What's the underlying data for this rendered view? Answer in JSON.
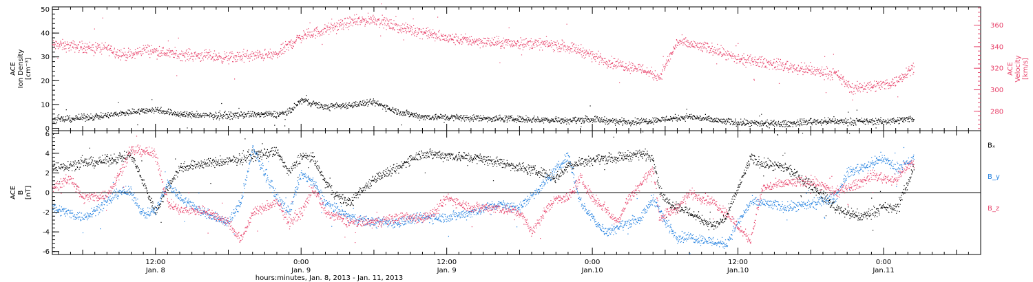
{
  "chart_data": {
    "type": "scatter",
    "xlabel": "hours:minutes, Jan.  8, 2013 - Jan. 11, 2013",
    "x_unit": "hours since 2013-01-08 00:00",
    "x_range": [
      3.5,
      80
    ],
    "x_ticks": [
      {
        "hour": 12,
        "time": "12:00",
        "date": "Jan. 8"
      },
      {
        "hour": 24,
        "time": "0:00",
        "date": "Jan. 9"
      },
      {
        "hour": 36,
        "time": "12:00",
        "date": "Jan. 9"
      },
      {
        "hour": 48,
        "time": "0:00",
        "date": "Jan.10"
      },
      {
        "hour": 60,
        "time": "12:00",
        "date": "Jan.10"
      },
      {
        "hour": 72,
        "time": "0:00",
        "date": "Jan.11"
      }
    ],
    "panels": [
      {
        "id": "plasma",
        "left_axis": {
          "title_lines": [
            "ACE",
            "Ion Density",
            "[cm⁻³]"
          ],
          "range": [
            -1,
            51
          ],
          "ticks": [
            "0",
            "10",
            "20",
            "30",
            "40",
            "50"
          ],
          "color": "#000000"
        },
        "right_axis": {
          "title_lines": [
            "ACE",
            "Velocity",
            "[km/s]"
          ],
          "range": [
            262,
            377
          ],
          "ticks": [
            "280",
            "300",
            "320",
            "340",
            "360"
          ],
          "color": "#e8436b"
        },
        "series": [
          {
            "axis": "right",
            "color": "#e8436b",
            "anchors": [
              [
                3.5,
                342
              ],
              [
                6,
                340
              ],
              [
                8,
                339
              ],
              [
                9,
                334
              ],
              [
                10,
                332
              ],
              [
                11,
                338
              ],
              [
                12,
                336
              ],
              [
                14,
                333
              ],
              [
                16,
                332
              ],
              [
                18,
                330
              ],
              [
                20,
                332
              ],
              [
                22,
                333
              ],
              [
                22.5,
                338
              ],
              [
                24,
                350
              ],
              [
                26,
                356
              ],
              [
                28,
                363
              ],
              [
                30,
                366
              ],
              [
                32,
                358
              ],
              [
                33,
                356
              ],
              [
                34,
                354
              ],
              [
                36,
                348
              ],
              [
                38,
                346
              ],
              [
                40,
                344
              ],
              [
                44,
                343
              ],
              [
                46,
                340
              ],
              [
                47,
                337
              ],
              [
                48,
                332
              ],
              [
                50,
                324
              ],
              [
                52,
                320
              ],
              [
                53.5,
                312
              ],
              [
                55,
                345
              ],
              [
                57,
                340
              ],
              [
                58,
                338
              ],
              [
                60,
                328
              ],
              [
                62,
                326
              ],
              [
                64,
                322
              ],
              [
                66,
                318
              ],
              [
                68,
                315
              ],
              [
                69.5,
                300
              ],
              [
                70,
                303
              ],
              [
                72,
                305
              ],
              [
                73,
                308
              ],
              [
                74,
                318
              ],
              [
                74.5,
                322
              ]
            ]
          },
          {
            "axis": "left",
            "color": "#000000",
            "anchors": [
              [
                3.5,
                3.5
              ],
              [
                8,
                5.5
              ],
              [
                10,
                7
              ],
              [
                12,
                8
              ],
              [
                14,
                6
              ],
              [
                16,
                5.5
              ],
              [
                18,
                5.5
              ],
              [
                20,
                6
              ],
              [
                22,
                6
              ],
              [
                23,
                7
              ],
              [
                24,
                12
              ],
              [
                26,
                9
              ],
              [
                28,
                10
              ],
              [
                30,
                11
              ],
              [
                32,
                7
              ],
              [
                34,
                5
              ],
              [
                38,
                4.5
              ],
              [
                42,
                4
              ],
              [
                46,
                3.5
              ],
              [
                48,
                4
              ],
              [
                50,
                3
              ],
              [
                52,
                3
              ],
              [
                54,
                4
              ],
              [
                56,
                5
              ],
              [
                58,
                3.5
              ],
              [
                60,
                2.5
              ],
              [
                62,
                2
              ],
              [
                64,
                2
              ],
              [
                66,
                3
              ],
              [
                68,
                3
              ],
              [
                70,
                3
              ],
              [
                72,
                3
              ],
              [
                74,
                4
              ],
              [
                74.5,
                4.5
              ]
            ]
          }
        ]
      },
      {
        "id": "magnetic",
        "left_axis": {
          "title_lines": [
            "ACE",
            "B",
            "[nT]"
          ],
          "range": [
            -6.3,
            6.3
          ],
          "ticks": [
            "-6",
            "-4",
            "-2",
            "0",
            "2",
            "4",
            "6"
          ],
          "color": "#000000"
        },
        "zero_line": true,
        "series": [
          {
            "name": "Bₓ",
            "color": "#000000",
            "anchors": [
              [
                3.5,
                2.6
              ],
              [
                6,
                3
              ],
              [
                8,
                3.3
              ],
              [
                9,
                3.6
              ],
              [
                10,
                3.8
              ],
              [
                11,
                1
              ],
              [
                12,
                -2
              ],
              [
                13,
                0.6
              ],
              [
                14,
                2.6
              ],
              [
                16,
                3
              ],
              [
                18,
                3.2
              ],
              [
                20,
                3.8
              ],
              [
                22,
                4.2
              ],
              [
                23,
                2
              ],
              [
                24,
                3.8
              ],
              [
                25,
                3.5
              ],
              [
                26,
                1
              ],
              [
                27,
                -0.4
              ],
              [
                28,
                -1
              ],
              [
                30,
                1.5
              ],
              [
                32,
                2.5
              ],
              [
                33,
                3.5
              ],
              [
                34,
                4
              ],
              [
                36,
                3.8
              ],
              [
                38,
                3.6
              ],
              [
                40,
                3.2
              ],
              [
                42,
                2.6
              ],
              [
                44,
                2
              ],
              [
                45,
                1.5
              ],
              [
                46,
                2.8
              ],
              [
                48,
                3.4
              ],
              [
                50,
                3.6
              ],
              [
                52,
                4
              ],
              [
                53,
                3.6
              ],
              [
                53.5,
                0.5
              ],
              [
                54,
                -0.8
              ],
              [
                56,
                -2
              ],
              [
                58,
                -3.4
              ],
              [
                59,
                -2.5
              ],
              [
                60,
                0.5
              ],
              [
                61,
                3.5
              ],
              [
                62,
                3
              ],
              [
                64,
                2.5
              ],
              [
                65,
                1.5
              ],
              [
                66,
                0.8
              ],
              [
                68,
                -1.5
              ],
              [
                70,
                -2.5
              ],
              [
                72,
                -1.5
              ],
              [
                73,
                -1.6
              ],
              [
                74,
                1
              ],
              [
                74.5,
                3
              ]
            ]
          },
          {
            "name": "B_y",
            "color": "#1f7fe0",
            "anchors": [
              [
                3.5,
                -1.5
              ],
              [
                6,
                -2.5
              ],
              [
                8,
                -1
              ],
              [
                9,
                0.2
              ],
              [
                10,
                0
              ],
              [
                11,
                -2.2
              ],
              [
                12,
                -1.8
              ],
              [
                13,
                1
              ],
              [
                14,
                -0.5
              ],
              [
                16,
                -2
              ],
              [
                18,
                -3
              ],
              [
                19,
                -1
              ],
              [
                20,
                4.5
              ],
              [
                21,
                2
              ],
              [
                22,
                -0.5
              ],
              [
                23,
                -2
              ],
              [
                24,
                2
              ],
              [
                25,
                1
              ],
              [
                26,
                -1
              ],
              [
                28,
                -2.5
              ],
              [
                30,
                -3
              ],
              [
                32,
                -3
              ],
              [
                34,
                -2.5
              ],
              [
                36,
                -2.5
              ],
              [
                38,
                -2
              ],
              [
                40,
                -1.2
              ],
              [
                42,
                -1.5
              ],
              [
                44,
                1
              ],
              [
                46,
                3.8
              ],
              [
                47,
                -1
              ],
              [
                48,
                -2.5
              ],
              [
                49,
                -4
              ],
              [
                50,
                -3.5
              ],
              [
                52,
                -2.5
              ],
              [
                53,
                -0.5
              ],
              [
                54,
                -3
              ],
              [
                55,
                -4.5
              ],
              [
                56,
                -4.5
              ],
              [
                58,
                -5
              ],
              [
                59,
                -5.2
              ],
              [
                60,
                -3
              ],
              [
                61,
                -1
              ],
              [
                62,
                -1
              ],
              [
                64,
                -1.5
              ],
              [
                66,
                -1.2
              ],
              [
                68,
                -0.5
              ],
              [
                69,
                2
              ],
              [
                70,
                2.5
              ],
              [
                72,
                3.5
              ],
              [
                73,
                2.5
              ],
              [
                74,
                3
              ],
              [
                74.5,
                3.5
              ]
            ]
          },
          {
            "name": "B_z",
            "color": "#e8436b",
            "anchors": [
              [
                3.5,
                0.5
              ],
              [
                5,
                1.5
              ],
              [
                6,
                -0.5
              ],
              [
                8,
                -0.2
              ],
              [
                9,
                2
              ],
              [
                10,
                4.3
              ],
              [
                11,
                4.3
              ],
              [
                12,
                3.8
              ],
              [
                13,
                -1
              ],
              [
                14,
                -1.8
              ],
              [
                16,
                -1.8
              ],
              [
                18,
                -3
              ],
              [
                19,
                -4.8
              ],
              [
                20,
                -2
              ],
              [
                22,
                -1
              ],
              [
                23,
                -3
              ],
              [
                24,
                -2
              ],
              [
                25,
                0.5
              ],
              [
                26,
                -2
              ],
              [
                28,
                -3
              ],
              [
                30,
                -3
              ],
              [
                32,
                -2.5
              ],
              [
                34,
                -2.5
              ],
              [
                35,
                -2
              ],
              [
                36,
                -0.5
              ],
              [
                38,
                -1.5
              ],
              [
                40,
                -1.5
              ],
              [
                42,
                -2
              ],
              [
                43,
                -4
              ],
              [
                44,
                -2
              ],
              [
                45,
                -0.5
              ],
              [
                46,
                -0.5
              ],
              [
                47,
                1.5
              ],
              [
                48,
                -0.5
              ],
              [
                49,
                -1.5
              ],
              [
                50,
                -3
              ],
              [
                51,
                -0.5
              ],
              [
                52,
                1
              ],
              [
                53,
                2.5
              ],
              [
                53.5,
                -2.5
              ],
              [
                55,
                -1.5
              ],
              [
                56,
                0
              ],
              [
                58,
                -1
              ],
              [
                59,
                -2
              ],
              [
                60,
                -3.5
              ],
              [
                61,
                -4.8
              ],
              [
                62,
                0.5
              ],
              [
                64,
                1
              ],
              [
                66,
                1.2
              ],
              [
                68,
                0
              ],
              [
                70,
                1
              ],
              [
                71,
                1.8
              ],
              [
                72,
                1.5
              ],
              [
                73,
                1.3
              ],
              [
                74,
                2.8
              ],
              [
                74.5,
                3
              ]
            ]
          }
        ]
      }
    ]
  }
}
